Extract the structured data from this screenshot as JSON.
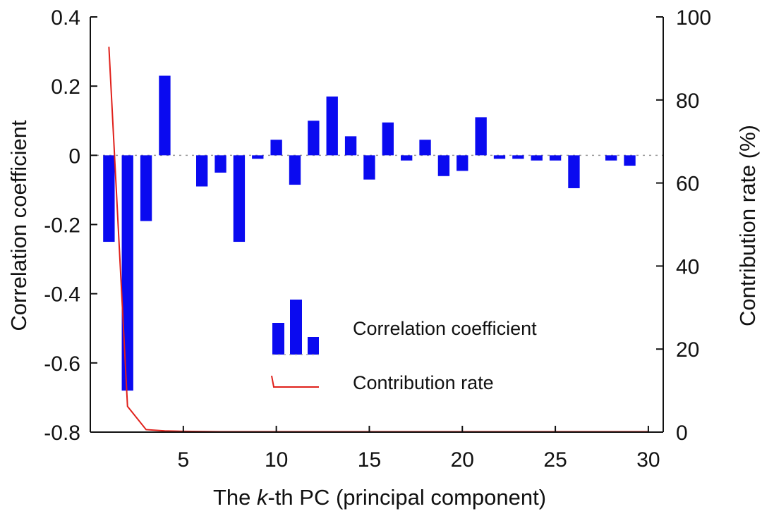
{
  "chart_data": {
    "type": "bar",
    "title": "",
    "xlabel": "The k-th PC (principal component)",
    "xlabel_parts": {
      "prefix": "The ",
      "italic": "k",
      "suffix": "-th PC (principal component)"
    },
    "ylabel": "Correlation coefficient",
    "y2label": "Contribution rate (%)",
    "xlim": [
      0,
      30.8
    ],
    "ylim": [
      -0.8,
      0.4
    ],
    "y2lim": [
      0,
      100
    ],
    "xticks": [
      5,
      10,
      15,
      20,
      25,
      30
    ],
    "yticks": [
      0.4,
      0.2,
      0,
      -0.2,
      -0.4,
      -0.6,
      -0.8
    ],
    "ytick_labels": [
      "0.4",
      "0.2",
      "0",
      "-0.2",
      "-0.4",
      "-0.6",
      "-0.8"
    ],
    "y2ticks": [
      100,
      80,
      60,
      40,
      20,
      0
    ],
    "legend_position": "center",
    "series": [
      {
        "name": "Correlation coefficient",
        "type": "bar",
        "color": "#0a0af0",
        "x": [
          1,
          2,
          3,
          4,
          5,
          6,
          7,
          8,
          9,
          10,
          11,
          12,
          13,
          14,
          15,
          16,
          17,
          18,
          19,
          20,
          21,
          22,
          23,
          24,
          25,
          26,
          27,
          28,
          29,
          30
        ],
        "values": [
          -0.25,
          -0.68,
          -0.19,
          0.23,
          0,
          -0.09,
          -0.05,
          -0.25,
          -0.01,
          0.045,
          -0.085,
          0.1,
          0.17,
          0.055,
          -0.07,
          0.095,
          -0.015,
          0.045,
          -0.06,
          -0.045,
          0.11,
          -0.01,
          -0.01,
          -0.015,
          -0.015,
          -0.095,
          0,
          -0.015,
          -0.03,
          0
        ]
      },
      {
        "name": "Contribution rate",
        "type": "line",
        "axis": "right",
        "color": "#e0201a",
        "x": [
          1,
          2,
          3,
          4,
          5,
          6,
          7,
          8,
          9,
          10,
          11,
          12,
          13,
          14,
          15,
          16,
          17,
          18,
          19,
          20,
          21,
          22,
          23,
          24,
          25,
          26,
          27,
          28,
          29,
          30
        ],
        "values": [
          92.8,
          6.2,
          0.6,
          0.3,
          0.2,
          0.15,
          0.1,
          0.1,
          0.1,
          0.1,
          0.1,
          0.1,
          0.1,
          0.1,
          0.1,
          0.1,
          0.1,
          0.1,
          0.1,
          0.1,
          0.1,
          0.1,
          0.1,
          0.1,
          0.1,
          0.1,
          0.1,
          0.1,
          0.1,
          0.1
        ]
      }
    ]
  }
}
